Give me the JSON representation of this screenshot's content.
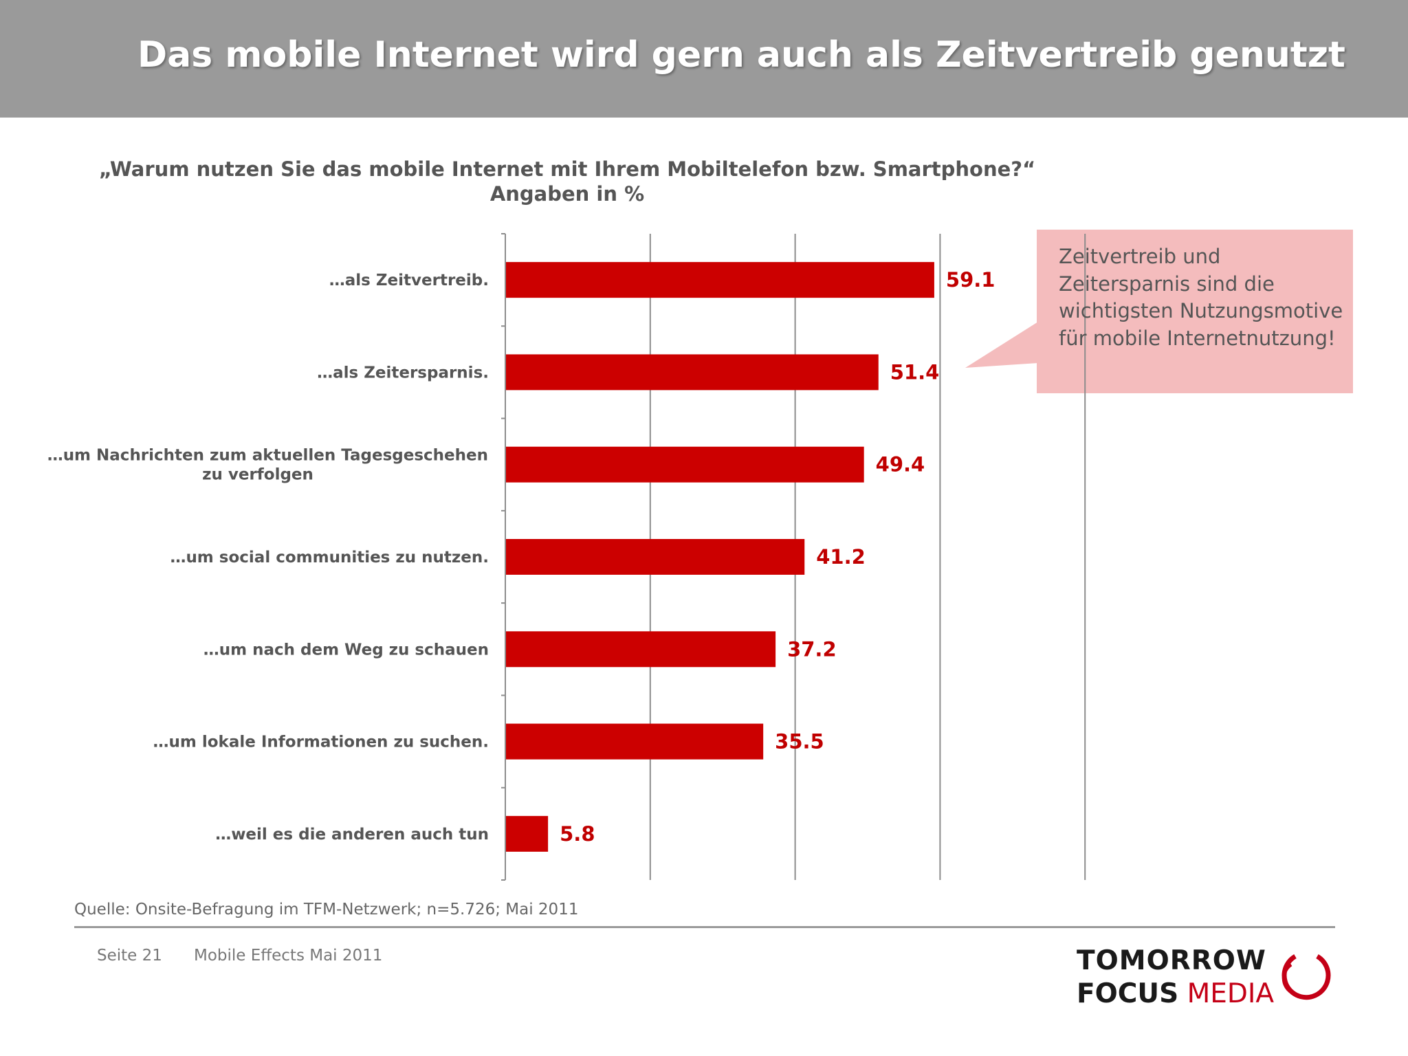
{
  "slide": {
    "title": "Das mobile Internet wird gern auch als Zeitvertreib genutzt"
  },
  "chart_data": {
    "type": "bar",
    "orientation": "horizontal",
    "title": "„Warum nutzen Sie das mobile Internet mit Ihrem Mobiltelefon bzw. Smartphone?“",
    "subtitle": "Angaben in %",
    "categories": [
      "…als Zeitvertreib.",
      "…als Zeitersparnis.",
      "…um Nachrichten zum aktuellen Tagesgeschehen zu verfolgen",
      "…um social communities zu nutzen.",
      "…um nach dem Weg zu schauen",
      "…um lokale Informationen zu suchen.",
      "…weil es die anderen auch tun"
    ],
    "values": [
      59.1,
      51.4,
      49.4,
      41.2,
      37.2,
      35.5,
      5.8
    ],
    "xlim": [
      0,
      100
    ],
    "grid": true,
    "bar_color": "#cc0000",
    "label_color": "#c00000"
  },
  "callout": {
    "text": "Zeitvertreib und Zeitersparnis sind die wichtigsten Nutzungsmotive für mobile Internetnutzung!",
    "color": "#f4bcbd"
  },
  "source": "Quelle: Onsite-Befragung im TFM-Netzwerk; n=5.726; Mai 2011",
  "footer": {
    "page": "Seite 21",
    "title": "Mobile Effects Mai 2011"
  },
  "logo": {
    "line1": "TOMORROW",
    "line2_a": "FOCUS",
    "line2_b": "MEDIA",
    "accent": "#c40016"
  }
}
